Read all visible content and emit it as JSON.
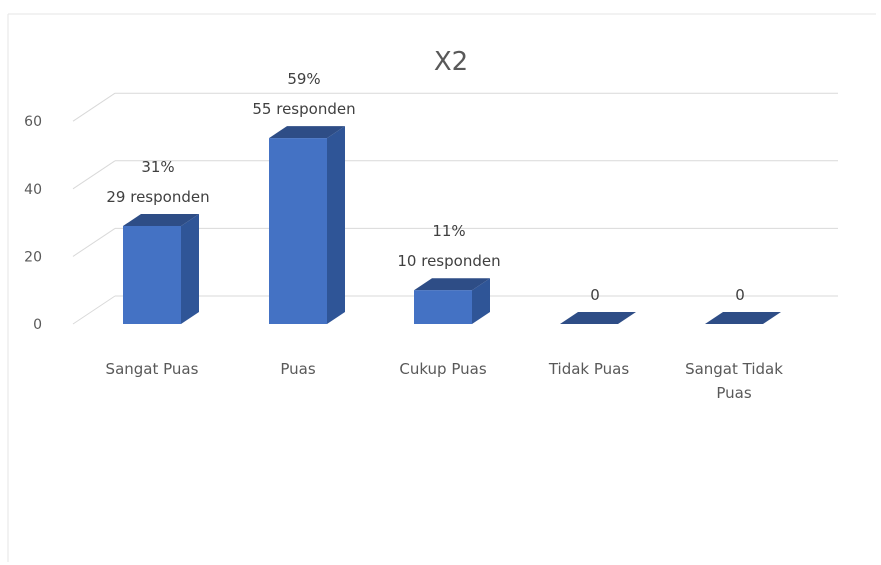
{
  "chart_data": {
    "type": "bar",
    "style": "3d-column",
    "title": "X2",
    "xlabel": "",
    "ylabel": "",
    "ylim": [
      0,
      60
    ],
    "yticks": [
      "0",
      "20",
      "40",
      "60"
    ],
    "grid": true,
    "legend": "none",
    "categories": [
      "Sangat Puas",
      "Puas",
      "Cukup Puas",
      "Tidak Puas",
      "Sangat Tidak Puas"
    ],
    "category_label_lines": [
      [
        "Sangat Puas"
      ],
      [
        "Puas"
      ],
      [
        "Cukup Puas"
      ],
      [
        "Tidak Puas"
      ],
      [
        "Sangat Tidak",
        "Puas"
      ]
    ],
    "values": [
      29,
      55,
      10,
      0,
      0
    ],
    "data_labels": [
      [
        "31%",
        "29 responden"
      ],
      [
        "59%",
        "55 responden"
      ],
      [
        "11%",
        "10 responden"
      ],
      [
        "0"
      ],
      [
        "0"
      ]
    ],
    "colors": {
      "front": "#4472C4",
      "side": "#2F5597",
      "top": "#2E4D86",
      "grid": "#D9D9D9",
      "text": "#595959"
    }
  }
}
